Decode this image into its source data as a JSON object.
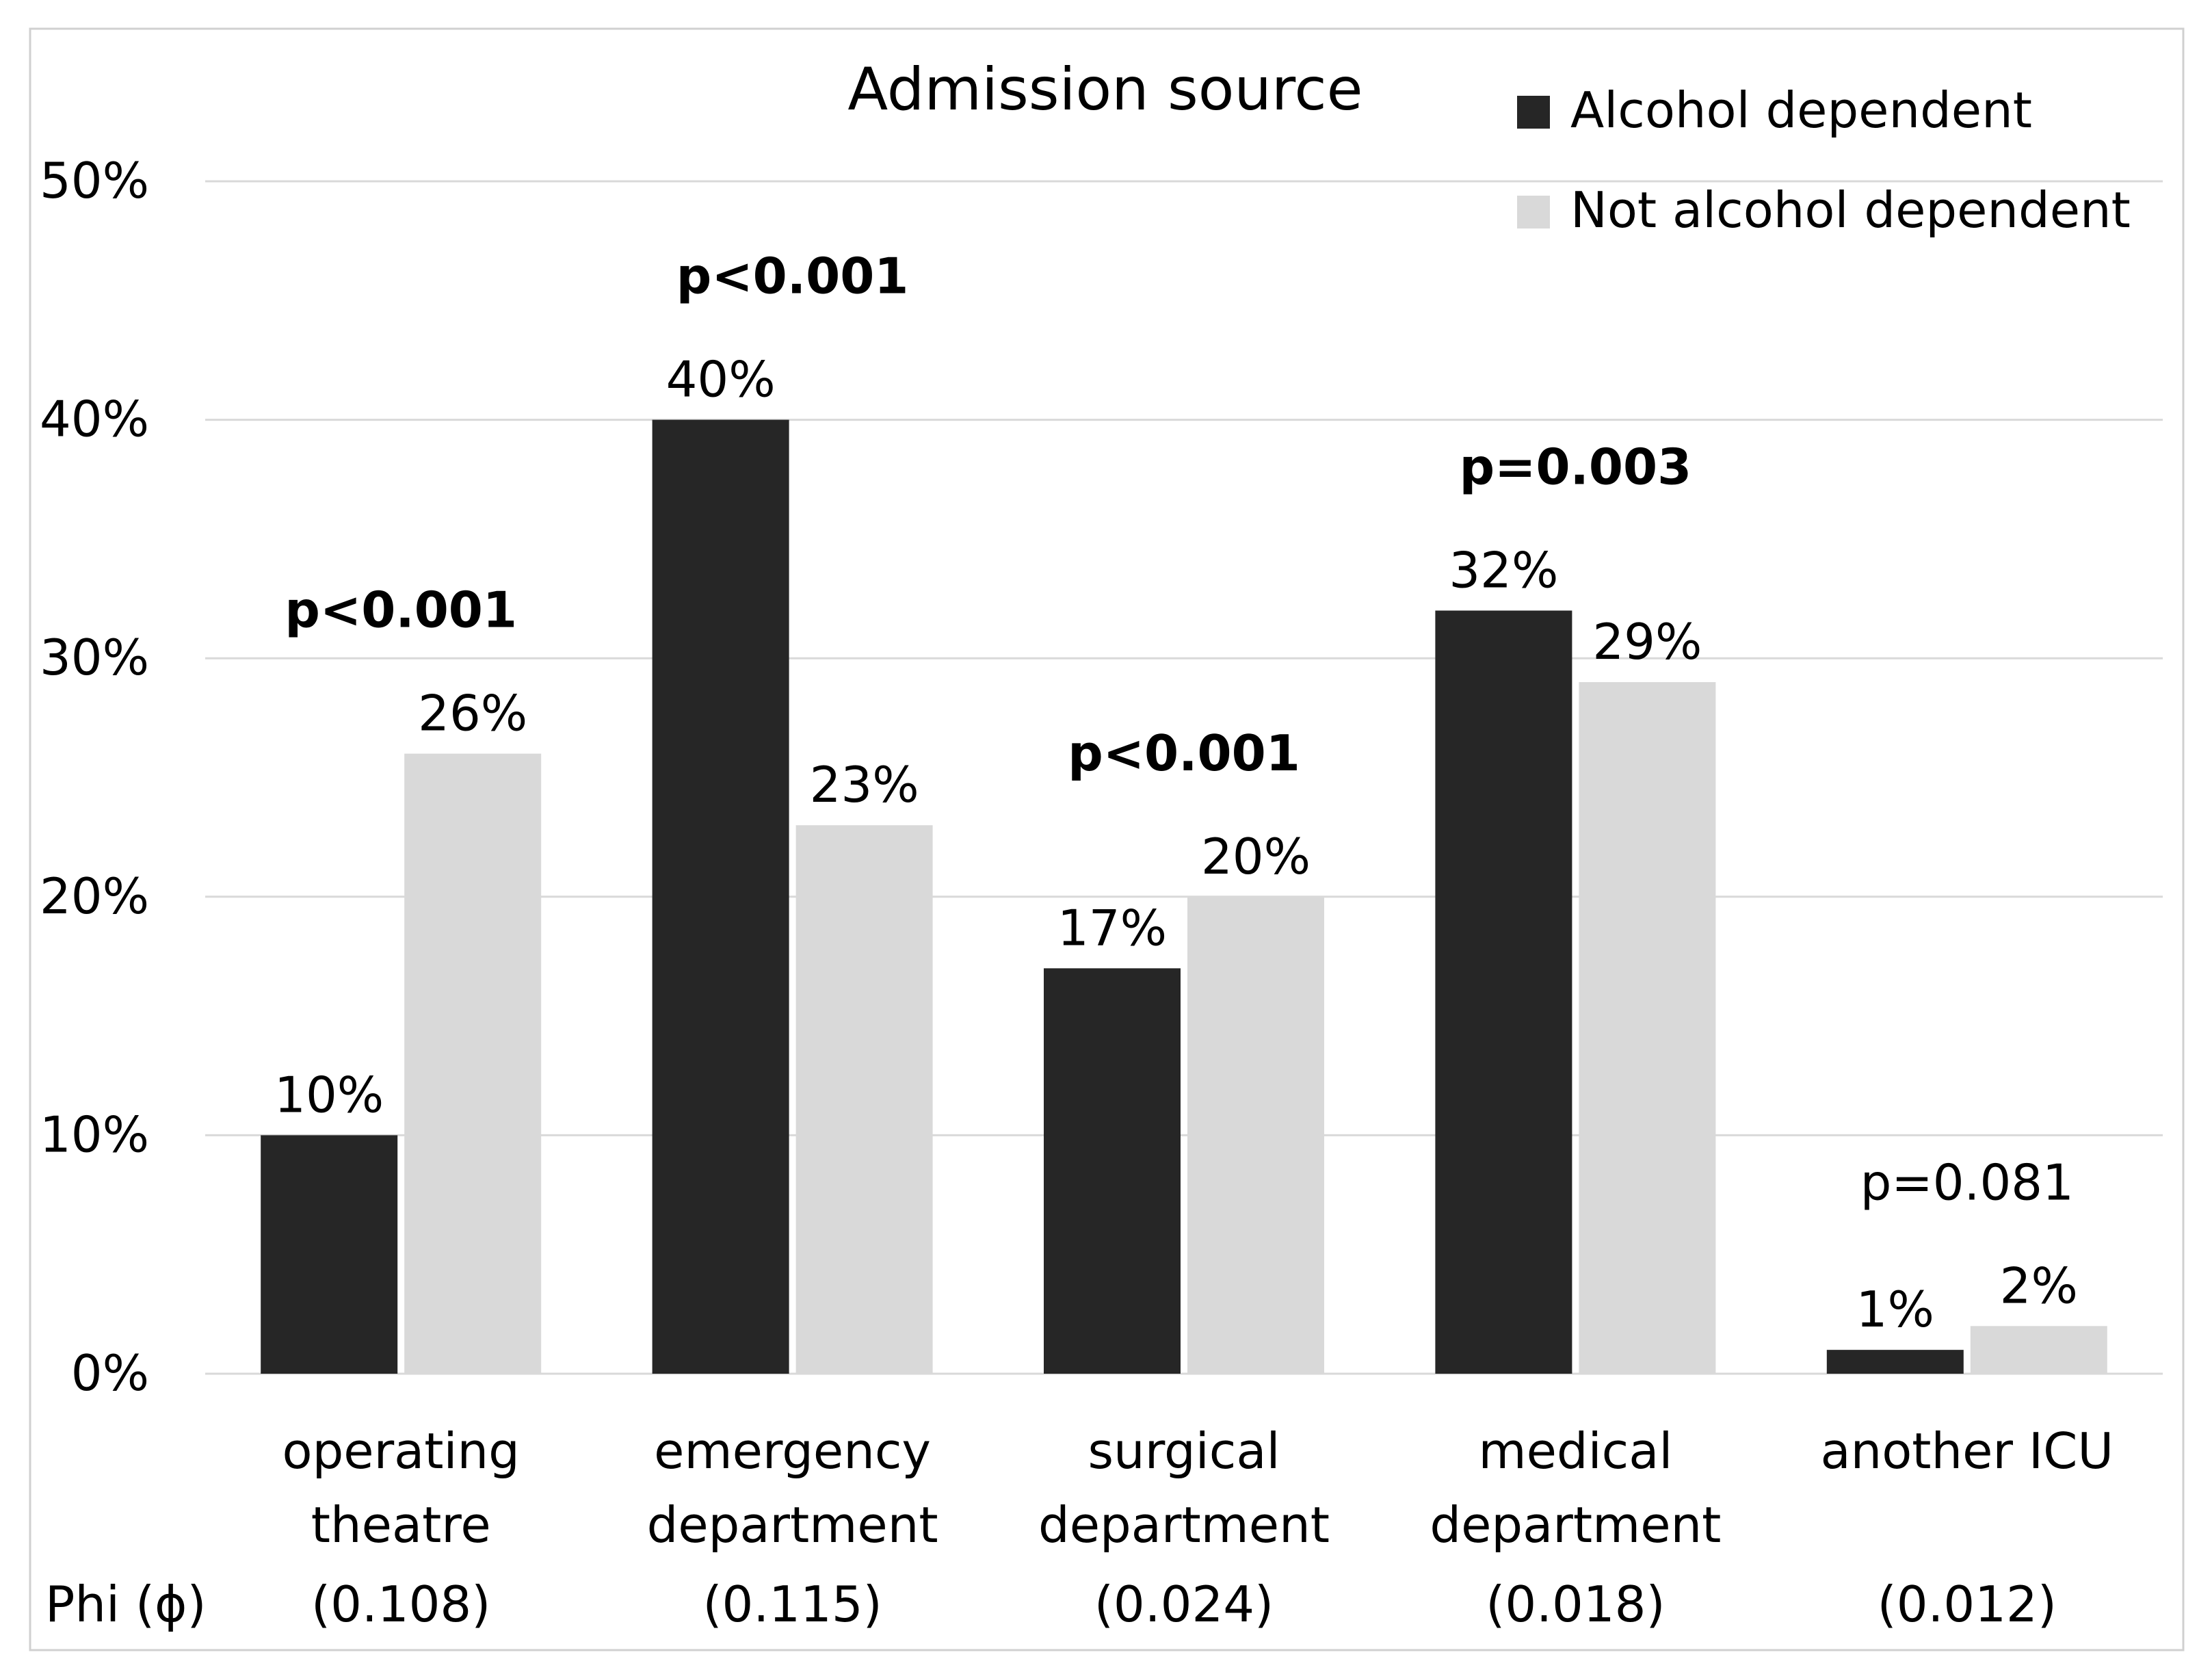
{
  "chart_data": {
    "type": "bar",
    "title": "Admission source",
    "categories": [
      [
        "operating",
        "theatre"
      ],
      [
        "emergency",
        "department"
      ],
      [
        "surgical",
        "department"
      ],
      [
        "medical",
        "department"
      ],
      [
        "another ICU"
      ]
    ],
    "series": [
      {
        "name": "Alcohol dependent",
        "color": "#262626",
        "values": [
          10,
          40,
          17,
          32,
          1
        ],
        "labels": [
          "10%",
          "40%",
          "17%",
          "32%",
          "1%"
        ]
      },
      {
        "name": "Not alcohol dependent",
        "color": "#d9d9d9",
        "values": [
          26,
          23,
          20,
          29,
          2
        ],
        "labels": [
          "26%",
          "23%",
          "20%",
          "29%",
          "2%"
        ]
      }
    ],
    "p_values": [
      {
        "text": "p<0.001",
        "bold": true
      },
      {
        "text": "p<0.001",
        "bold": true
      },
      {
        "text": "p<0.001",
        "bold": true
      },
      {
        "text": "p=0.003",
        "bold": true
      },
      {
        "text": "p=0.081",
        "bold": false
      }
    ],
    "phi_label": "Phi (ϕ)",
    "phi_values": [
      "(0.108)",
      "(0.115)",
      "(0.024)",
      "(0.018)",
      "(0.012)"
    ],
    "ylim": [
      0,
      50
    ],
    "yticks": [
      0,
      10,
      20,
      30,
      40,
      50
    ],
    "ytick_labels": [
      "0%",
      "10%",
      "20%",
      "30%",
      "40%",
      "50%"
    ],
    "grid": true,
    "legend_position": "top-right",
    "xlabel": "",
    "ylabel": ""
  }
}
